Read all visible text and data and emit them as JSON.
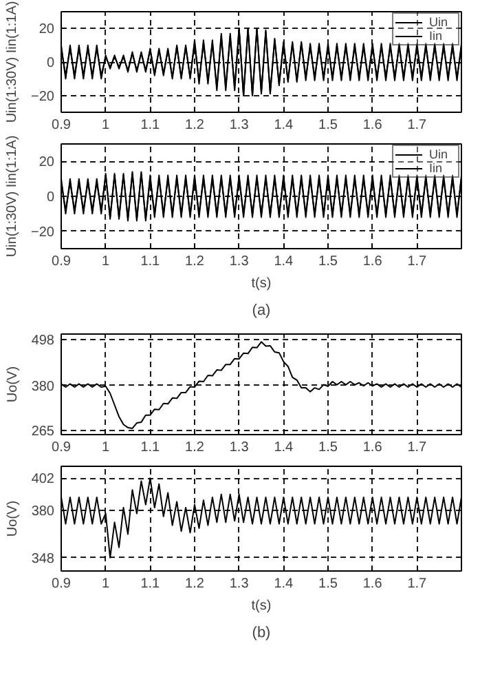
{
  "chart_data": [
    {
      "type": "line",
      "ylabel": "Uin(1:30V) Iin(1:1A)",
      "xlim": [
        0.9,
        1.8
      ],
      "xticks": [
        0.9,
        1,
        1.1,
        1.2,
        1.3,
        1.4,
        1.5,
        1.6,
        1.7
      ],
      "ylim": [
        -30,
        30
      ],
      "yticks": [
        -20,
        0,
        20
      ],
      "grid": true,
      "legend": "top right",
      "x": [
        0.9,
        0.91,
        0.92,
        0.93,
        0.94,
        0.95,
        0.96,
        0.97,
        0.98,
        0.99,
        1.0,
        1.01,
        1.02,
        1.03,
        1.04,
        1.05,
        1.06,
        1.07,
        1.08,
        1.09,
        1.1,
        1.11,
        1.12,
        1.13,
        1.14,
        1.15,
        1.16,
        1.17,
        1.18,
        1.19,
        1.2,
        1.21,
        1.22,
        1.23,
        1.24,
        1.25,
        1.26,
        1.27,
        1.28,
        1.29,
        1.3,
        1.31,
        1.32,
        1.33,
        1.34,
        1.35,
        1.36,
        1.37,
        1.38,
        1.39,
        1.4,
        1.41,
        1.42,
        1.43,
        1.44,
        1.45,
        1.46,
        1.47,
        1.48,
        1.49,
        1.5,
        1.51,
        1.52,
        1.53,
        1.54,
        1.55,
        1.56,
        1.57,
        1.58,
        1.59,
        1.6,
        1.61,
        1.62,
        1.63,
        1.64,
        1.65,
        1.66,
        1.67,
        1.68,
        1.69,
        1.7,
        1.71,
        1.72,
        1.73,
        1.74,
        1.75,
        1.76,
        1.77,
        1.78,
        1.79,
        1.8
      ],
      "series": [
        {
          "name": "Uin",
          "color": "#000000",
          "values": [
            8,
            -8,
            8,
            -8,
            8,
            -8,
            8,
            -8,
            8,
            -8,
            3,
            -3,
            3,
            -3,
            3,
            -5,
            5,
            -5,
            5,
            -5,
            7,
            -7,
            7,
            -7,
            7,
            -9,
            9,
            -9,
            9,
            -9,
            11,
            -11,
            11,
            -11,
            11,
            -15,
            15,
            -15,
            15,
            -15,
            20,
            -20,
            20,
            -20,
            20,
            -19,
            19,
            -19,
            14,
            -14,
            11,
            -11,
            11,
            -11,
            11,
            -9,
            9,
            -9,
            9,
            -9,
            9,
            -9,
            9,
            -9,
            9,
            -9,
            9,
            -9,
            9,
            -9,
            9,
            -9,
            9,
            -9,
            9,
            -9,
            9,
            -9,
            9,
            -9,
            9,
            -9,
            9,
            -9,
            9,
            -9,
            9,
            -9,
            9,
            -9,
            9
          ]
        },
        {
          "name": "Iin",
          "color": "#000000",
          "values": [
            10,
            -10,
            10,
            -10,
            10,
            -10,
            10,
            -10,
            10,
            -10,
            4,
            -4,
            4,
            -4,
            4,
            -6,
            6,
            -6,
            6,
            -6,
            8,
            -8,
            8,
            -8,
            8,
            -10,
            10,
            -10,
            10,
            -10,
            13,
            -13,
            13,
            -13,
            13,
            -17,
            17,
            -17,
            17,
            -17,
            20,
            -20,
            20,
            -20,
            20,
            -18,
            18,
            -18,
            13,
            -13,
            12,
            -12,
            12,
            -12,
            12,
            -11,
            11,
            -11,
            11,
            -11,
            11,
            -11,
            11,
            -11,
            11,
            -11,
            11,
            -11,
            11,
            -11,
            11,
            -11,
            11,
            -11,
            11,
            -11,
            11,
            -11,
            11,
            -11,
            11,
            -11,
            11,
            -11,
            11,
            -11,
            11,
            -11,
            11,
            -11,
            11
          ]
        }
      ]
    },
    {
      "type": "line",
      "ylabel": "Uin(1:30V) Iin(1:1A)",
      "xlabel": "t(s)",
      "annotations": [
        "(a)"
      ],
      "xlim": [
        0.9,
        1.8
      ],
      "xticks": [
        0.9,
        1,
        1.1,
        1.2,
        1.3,
        1.4,
        1.5,
        1.6,
        1.7
      ],
      "ylim": [
        -30,
        30
      ],
      "yticks": [
        -20,
        0,
        20
      ],
      "grid": true,
      "legend": "top right",
      "x": [
        0.9,
        0.91,
        0.92,
        0.93,
        0.94,
        0.95,
        0.96,
        0.97,
        0.98,
        0.99,
        1.0,
        1.01,
        1.02,
        1.03,
        1.04,
        1.05,
        1.06,
        1.07,
        1.08,
        1.09,
        1.1,
        1.11,
        1.12,
        1.13,
        1.14,
        1.15,
        1.16,
        1.17,
        1.18,
        1.19,
        1.2,
        1.21,
        1.22,
        1.23,
        1.24,
        1.25,
        1.26,
        1.27,
        1.28,
        1.29,
        1.3,
        1.31,
        1.32,
        1.33,
        1.34,
        1.35,
        1.36,
        1.37,
        1.38,
        1.39,
        1.4,
        1.41,
        1.42,
        1.43,
        1.44,
        1.45,
        1.46,
        1.47,
        1.48,
        1.49,
        1.5,
        1.51,
        1.52,
        1.53,
        1.54,
        1.55,
        1.56,
        1.57,
        1.58,
        1.59,
        1.6,
        1.61,
        1.62,
        1.63,
        1.64,
        1.65,
        1.66,
        1.67,
        1.68,
        1.69,
        1.7,
        1.71,
        1.72,
        1.73,
        1.74,
        1.75,
        1.76,
        1.77,
        1.78,
        1.79,
        1.8
      ],
      "series": [
        {
          "name": "Uin",
          "color": "#000000",
          "values": [
            8,
            -8,
            8,
            -8,
            8,
            -8,
            8,
            -8,
            8,
            -8,
            12,
            -12,
            12,
            -12,
            12,
            -13,
            13,
            -13,
            13,
            -13,
            10,
            -10,
            10,
            -10,
            10,
            -10,
            10,
            -10,
            10,
            -10,
            10,
            -10,
            10,
            -10,
            10,
            -10,
            10,
            -10,
            10,
            -10,
            10,
            -10,
            10,
            -10,
            10,
            -10,
            10,
            -10,
            10,
            -10,
            10,
            -10,
            10,
            -10,
            10,
            -10,
            10,
            -10,
            10,
            -10,
            10,
            -10,
            10,
            -10,
            10,
            -10,
            10,
            -10,
            10,
            -10,
            10,
            -10,
            10,
            -10,
            10,
            -10,
            10,
            -10,
            10,
            -10,
            10,
            -10,
            10,
            -10,
            10,
            -10,
            10,
            -10,
            10,
            -10,
            10
          ]
        },
        {
          "name": "Iin",
          "color": "#000000",
          "values": [
            10,
            -10,
            10,
            -10,
            10,
            -10,
            10,
            -10,
            10,
            -10,
            13,
            -13,
            13,
            -13,
            13,
            -14,
            14,
            -14,
            14,
            -14,
            12,
            -12,
            12,
            -12,
            12,
            -12,
            12,
            -12,
            12,
            -12,
            12,
            -12,
            12,
            -12,
            12,
            -12,
            12,
            -12,
            12,
            -12,
            12,
            -12,
            12,
            -12,
            12,
            -12,
            12,
            -12,
            12,
            -12,
            12,
            -12,
            12,
            -12,
            12,
            -12,
            12,
            -12,
            12,
            -12,
            12,
            -12,
            12,
            -12,
            12,
            -12,
            12,
            -12,
            12,
            -12,
            12,
            -12,
            12,
            -12,
            12,
            -12,
            12,
            -12,
            12,
            -12,
            12,
            -12,
            12,
            -12,
            12,
            -12,
            12,
            -12,
            12,
            -12,
            12
          ]
        }
      ]
    },
    {
      "type": "line",
      "ylabel": "Uo(V)",
      "xlim": [
        0.9,
        1.8
      ],
      "xticks": [
        0.9,
        1,
        1.1,
        1.2,
        1.3,
        1.4,
        1.5,
        1.6,
        1.7
      ],
      "ylim": [
        254,
        512
      ],
      "yticks": [
        265,
        380,
        498
      ],
      "grid": true,
      "x": [
        0.9,
        0.91,
        0.92,
        0.93,
        0.94,
        0.95,
        0.96,
        0.97,
        0.98,
        0.99,
        1.0,
        1.01,
        1.02,
        1.03,
        1.04,
        1.05,
        1.06,
        1.07,
        1.08,
        1.09,
        1.1,
        1.11,
        1.12,
        1.13,
        1.14,
        1.15,
        1.16,
        1.17,
        1.18,
        1.19,
        1.2,
        1.21,
        1.22,
        1.23,
        1.24,
        1.25,
        1.26,
        1.27,
        1.28,
        1.29,
        1.3,
        1.31,
        1.32,
        1.33,
        1.34,
        1.35,
        1.36,
        1.37,
        1.38,
        1.39,
        1.4,
        1.41,
        1.42,
        1.43,
        1.44,
        1.45,
        1.46,
        1.47,
        1.48,
        1.49,
        1.5,
        1.51,
        1.52,
        1.53,
        1.54,
        1.55,
        1.56,
        1.57,
        1.58,
        1.59,
        1.6,
        1.61,
        1.62,
        1.63,
        1.64,
        1.65,
        1.66,
        1.67,
        1.68,
        1.69,
        1.7,
        1.71,
        1.72,
        1.73,
        1.74,
        1.75,
        1.76,
        1.77,
        1.78,
        1.79,
        1.8
      ],
      "series": [
        {
          "color": "#000000",
          "values": [
            384,
            376,
            384,
            376,
            384,
            376,
            384,
            376,
            384,
            376,
            378,
            360,
            330,
            300,
            280,
            272,
            270,
            284,
            286,
            304,
            304,
            319,
            318,
            334,
            333,
            348,
            347,
            362,
            362,
            377,
            376,
            391,
            390,
            406,
            405,
            420,
            419,
            434,
            434,
            449,
            448,
            463,
            462,
            478,
            477,
            492,
            481,
            482,
            466,
            464,
            441,
            429,
            401,
            394,
            374,
            374,
            364,
            374,
            370,
            382,
            378,
            390,
            382,
            390,
            382,
            390,
            382,
            387,
            379,
            387,
            379,
            384,
            376,
            384,
            376,
            384,
            376,
            384,
            376,
            384,
            376,
            384,
            376,
            384,
            376,
            384,
            376,
            384,
            376,
            384,
            376
          ]
        }
      ]
    },
    {
      "type": "line",
      "ylabel": "Uo(V)",
      "xlabel": "t(s)",
      "annotations": [
        "(b)"
      ],
      "xlim": [
        0.9,
        1.8
      ],
      "xticks": [
        0.9,
        1,
        1.1,
        1.2,
        1.3,
        1.4,
        1.5,
        1.6,
        1.7
      ],
      "ylim": [
        339,
        410
      ],
      "yticks": [
        348,
        380,
        402
      ],
      "grid": true,
      "x": [
        0.9,
        0.91,
        0.92,
        0.93,
        0.94,
        0.95,
        0.96,
        0.97,
        0.98,
        0.99,
        1.0,
        1.01,
        1.02,
        1.03,
        1.04,
        1.05,
        1.06,
        1.07,
        1.08,
        1.09,
        1.1,
        1.11,
        1.12,
        1.13,
        1.14,
        1.15,
        1.16,
        1.17,
        1.18,
        1.19,
        1.2,
        1.21,
        1.22,
        1.23,
        1.24,
        1.25,
        1.26,
        1.27,
        1.28,
        1.29,
        1.3,
        1.31,
        1.32,
        1.33,
        1.34,
        1.35,
        1.36,
        1.37,
        1.38,
        1.39,
        1.4,
        1.41,
        1.42,
        1.43,
        1.44,
        1.45,
        1.46,
        1.47,
        1.48,
        1.49,
        1.5,
        1.51,
        1.52,
        1.53,
        1.54,
        1.55,
        1.56,
        1.57,
        1.58,
        1.59,
        1.6,
        1.61,
        1.62,
        1.63,
        1.64,
        1.65,
        1.66,
        1.67,
        1.68,
        1.69,
        1.7,
        1.71,
        1.72,
        1.73,
        1.74,
        1.75,
        1.76,
        1.77,
        1.78,
        1.79,
        1.8
      ],
      "series": [
        {
          "color": "#000000",
          "values": [
            389,
            371,
            389,
            371,
            389,
            371,
            389,
            371,
            389,
            371,
            378,
            348,
            372,
            355,
            382,
            364,
            394,
            378,
            400,
            384,
            402,
            382,
            398,
            376,
            392,
            370,
            386,
            366,
            382,
            365,
            384,
            368,
            387,
            370,
            389,
            372,
            391,
            372,
            391,
            373,
            391,
            372,
            389,
            371,
            389,
            371,
            389,
            371,
            389,
            371,
            389,
            371,
            389,
            371,
            389,
            371,
            389,
            371,
            389,
            371,
            389,
            371,
            389,
            371,
            389,
            371,
            389,
            371,
            389,
            371,
            389,
            371,
            389,
            371,
            389,
            371,
            389,
            371,
            389,
            371,
            389,
            371,
            389,
            371,
            389,
            371,
            389,
            371,
            389,
            371,
            389
          ]
        }
      ]
    }
  ]
}
